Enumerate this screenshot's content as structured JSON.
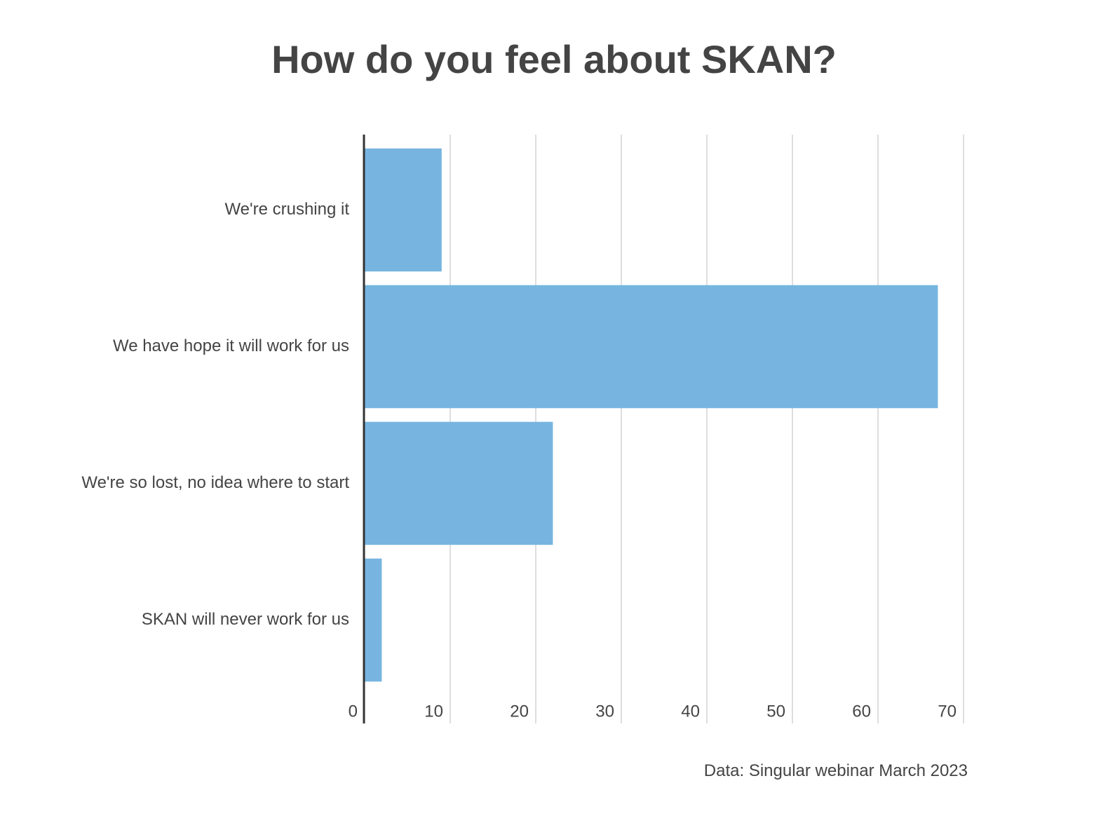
{
  "chart_data": {
    "type": "bar",
    "orientation": "horizontal",
    "title": "How do you feel about SKAN?",
    "categories": [
      "We're crushing it",
      "We have hope it will work for us",
      "We're so lost, no idea where to start",
      "SKAN will never work for us"
    ],
    "values": [
      9,
      67,
      22,
      2
    ],
    "xlim": [
      0,
      70
    ],
    "x_ticks": [
      0,
      10,
      20,
      30,
      40,
      50,
      60,
      70
    ],
    "grid": true,
    "bar_color": "#77B5E0",
    "grid_color": "#d3d3d3",
    "axis_color": "#333333",
    "source": "Data: Singular webinar March 2023"
  }
}
